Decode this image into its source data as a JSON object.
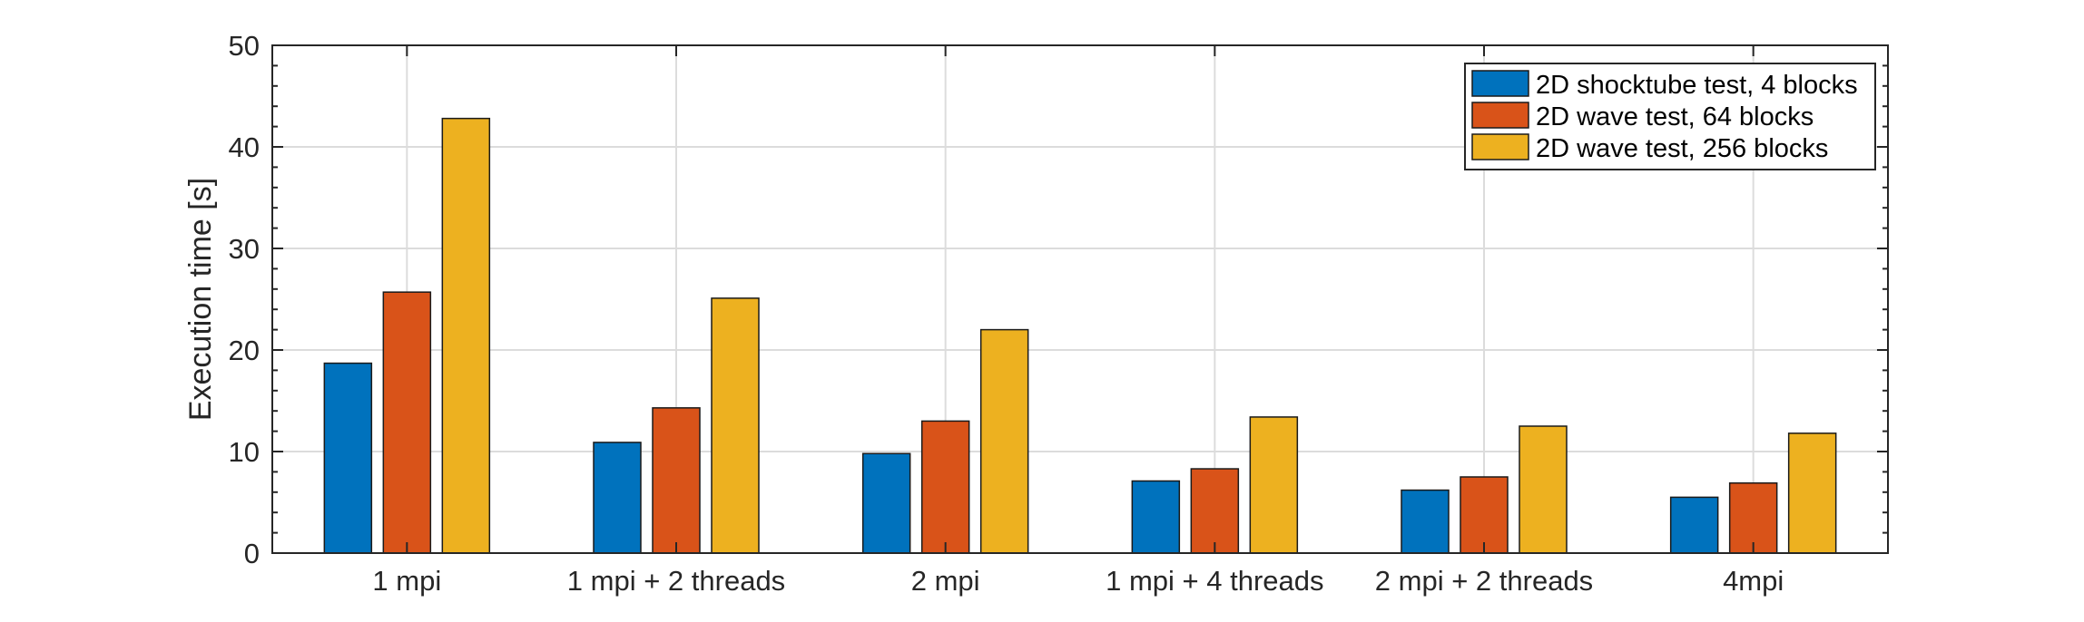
{
  "chart_data": {
    "type": "bar",
    "categories": [
      "1 mpi",
      "1 mpi + 2 threads",
      "2 mpi",
      "1 mpi + 4 threads",
      "2 mpi + 2 threads",
      "4mpi"
    ],
    "series": [
      {
        "name": "2D shocktube test, 4 blocks",
        "color": "#0072BD",
        "values": [
          18.7,
          10.9,
          9.8,
          7.1,
          6.2,
          5.5
        ]
      },
      {
        "name": "2D wave test, 64 blocks",
        "color": "#D95319",
        "values": [
          25.7,
          14.3,
          13.0,
          8.3,
          7.5,
          6.9
        ]
      },
      {
        "name": "2D wave test, 256 blocks",
        "color": "#EDB120",
        "values": [
          42.8,
          25.1,
          22.0,
          13.4,
          12.5,
          11.8
        ]
      }
    ],
    "title": "",
    "xlabel": "",
    "ylabel": "Execution time [s]",
    "ylim": [
      0,
      50
    ],
    "yticks": [
      0,
      10,
      20,
      30,
      40,
      50
    ],
    "grid": true,
    "legend_position": "top-right"
  }
}
